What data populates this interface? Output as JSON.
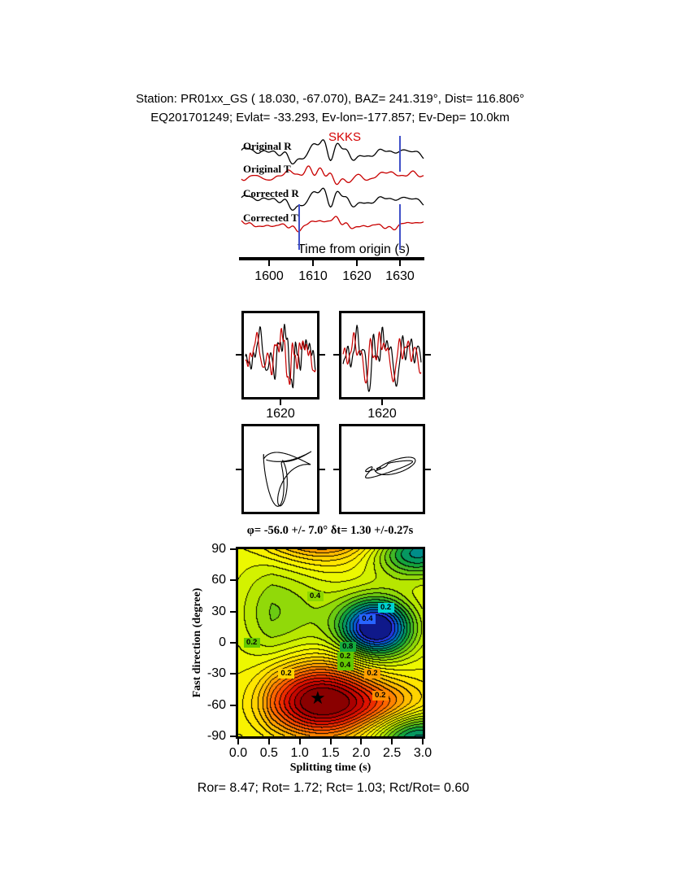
{
  "header": {
    "line1": "Station: PR01xx_GS (  18.030,  -67.070), BAZ=  241.319°, Dist=  116.806°",
    "line2": "EQ201701249; Evlat= -33.293, Ev-lon=-177.857; Ev-Dep= 10.0km"
  },
  "station": {
    "code": "PR01xx_GS",
    "lat": 18.03,
    "lon": -67.07,
    "baz_deg": 241.319,
    "dist_deg": 116.806
  },
  "event": {
    "id": "EQ201701249",
    "evlat": -33.293,
    "evlon": -177.857,
    "evdep_km": 10.0
  },
  "waveform_panel": {
    "phase_label": "SKKS",
    "trace_labels": [
      "Original R",
      "Original T",
      "Corrected R",
      "Corrected T"
    ],
    "axis_label": "Time from origin (s)",
    "ticks": [
      "1600",
      "1610",
      "1620",
      "1630"
    ]
  },
  "zoom_panels": {
    "ticks": [
      "1620",
      "1620"
    ]
  },
  "contour_panel": {
    "title": "φ= -56.0 +/- 7.0° δt= 1.30 +/-0.27s",
    "xlabel": "Splitting time (s)",
    "ylabel": "Fast direction (degree)",
    "x_tick_labels": [
      "0.0",
      "0.5",
      "1.0",
      "1.5",
      "2.0",
      "2.5",
      "3.0"
    ],
    "y_tick_labels": [
      "90",
      "60",
      "30",
      "0",
      "-30",
      "-60",
      "-90"
    ],
    "contour_labels": [
      {
        "text": "0.4",
        "t": 1.25,
        "phi": 45,
        "bg": "#8cd600"
      },
      {
        "text": "0.2",
        "t": 2.4,
        "phi": 34,
        "bg": "#00d2d2"
      },
      {
        "text": "0.4",
        "t": 2.1,
        "phi": 23,
        "bg": "#2864ff"
      },
      {
        "text": "0.2",
        "t": 0.22,
        "phi": 0,
        "bg": "#64c800"
      },
      {
        "text": "0.8",
        "t": 1.78,
        "phi": -4,
        "bg": "#14aa3c"
      },
      {
        "text": "0.2",
        "t": 1.74,
        "phi": -13,
        "bg": "#64c800"
      },
      {
        "text": "0.4",
        "t": 1.74,
        "phi": -22,
        "bg": "#64c800"
      },
      {
        "text": "0.2",
        "t": 2.18,
        "phi": -30,
        "bg": "#ffa000"
      },
      {
        "text": "0.2",
        "t": 0.78,
        "phi": -30,
        "bg": "#ffd200"
      },
      {
        "text": "0.2",
        "t": 2.31,
        "phi": -51,
        "bg": "#ff8c00"
      }
    ]
  },
  "footer": {
    "text": "Ror= 8.47; Rot= 1.72; Rct= 1.03; Rct/Rot= 0.60"
  },
  "results": {
    "Ror": 8.47,
    "Rot": 1.72,
    "Rct": 1.03,
    "Rct_over_Rot": 0.6
  },
  "colors": {
    "trace_black": "#000000",
    "trace_red": "#c80000",
    "window_marker": "#4050c8",
    "phase_label": "#d40000",
    "star": "#000000"
  },
  "chart_data": [
    {
      "type": "line",
      "title": "SKKS radial/transverse waveforms before and after splitting correction",
      "xlabel": "Time from origin (s)",
      "xlim": [
        1593,
        1636
      ],
      "x_ticks": [
        1600,
        1610,
        1620,
        1630
      ],
      "series": [
        {
          "name": "Original R",
          "color": "#000000"
        },
        {
          "name": "Original T",
          "color": "#c80000"
        },
        {
          "name": "Corrected R",
          "color": "#000000"
        },
        {
          "name": "Corrected T",
          "color": "#c80000"
        }
      ],
      "annotations": [
        {
          "text": "SKKS",
          "color": "#d40000"
        }
      ],
      "window_markers_s": [
        1614,
        1630
      ]
    },
    {
      "type": "line",
      "title": "Analysis-window waveform overlays",
      "panels": [
        {
          "name": "original-window",
          "x_tick": 1620,
          "series": [
            "R",
            "T"
          ]
        },
        {
          "name": "corrected-window",
          "x_tick": 1620,
          "series": [
            "R",
            "T"
          ]
        }
      ]
    },
    {
      "type": "scatter",
      "title": "Particle motion (original elliptical, corrected linearized)",
      "panels": [
        {
          "name": "original-particle-motion"
        },
        {
          "name": "corrected-particle-motion"
        }
      ]
    },
    {
      "type": "heatmap",
      "title": "φ= -56.0 +/- 7.0° δt= 1.30 +/-0.27s",
      "xlabel": "Splitting time (s)",
      "ylabel": "Fast direction (degree)",
      "xlim": [
        0,
        3
      ],
      "ylim": [
        -90,
        90
      ],
      "x_ticks": [
        0.0,
        0.5,
        1.0,
        1.5,
        2.0,
        2.5,
        3.0
      ],
      "y_ticks": [
        90,
        60,
        30,
        0,
        -30,
        -60,
        -90
      ],
      "best_solution": {
        "fast_direction_deg": -56.0,
        "fast_direction_err_deg": 7.0,
        "delay_time_s": 1.3,
        "delay_time_err_s": 0.27
      },
      "star_marker": {
        "x": 1.3,
        "y": -56
      },
      "annotated_contour_values": [
        0.2,
        0.4,
        0.8
      ],
      "num_bands": 26,
      "field_features": [
        {
          "x": 1.32,
          "phi": -56,
          "amp": -0.52,
          "sx": 0.65,
          "sp": 26
        },
        {
          "x": 2.45,
          "phi": -60,
          "amp": -0.16,
          "sx": 0.55,
          "sp": 15
        },
        {
          "x": 2.25,
          "phi": 14,
          "amp": 0.55,
          "sx": 0.42,
          "sp": 20
        },
        {
          "x": 0.5,
          "phi": 28,
          "amp": 0.16,
          "sx": 0.75,
          "sp": 38
        },
        {
          "x": 2.9,
          "phi": 88,
          "amp": 0.34,
          "sx": 0.5,
          "sp": 18
        }
      ]
    }
  ]
}
